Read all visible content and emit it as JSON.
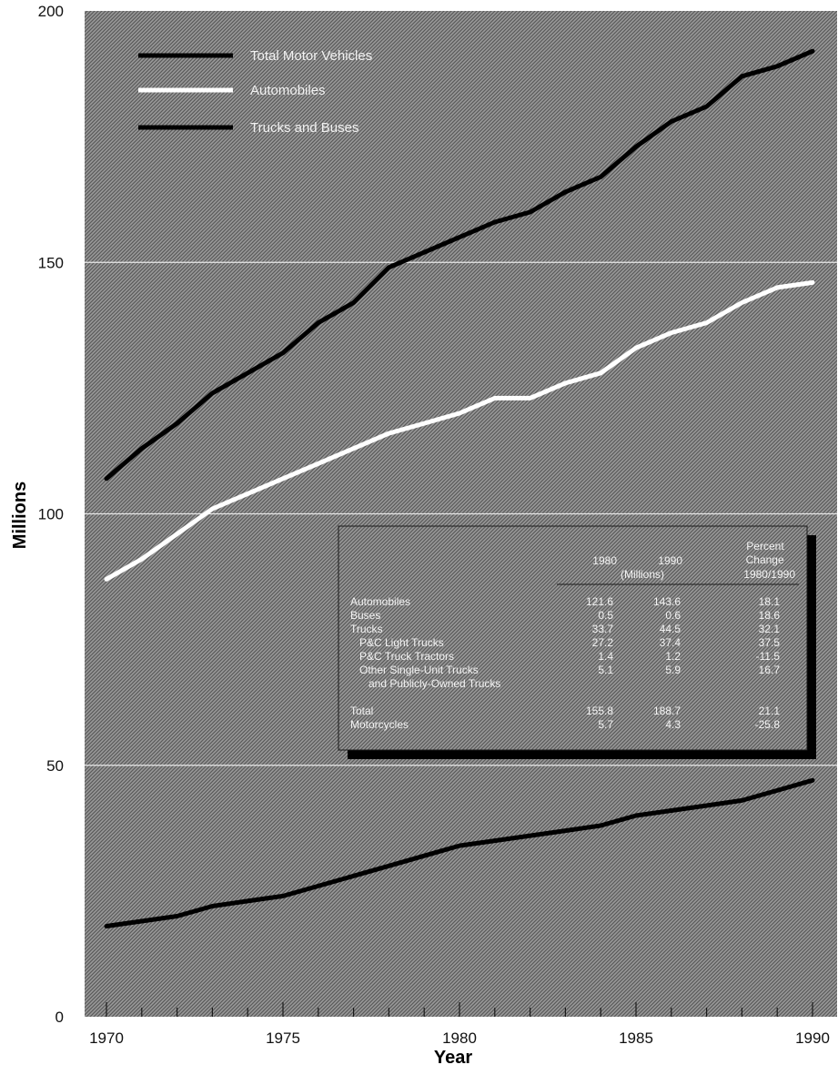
{
  "chart_data": {
    "type": "line",
    "xlabel": "Year",
    "ylabel": "Millions",
    "xlim": [
      1970,
      1990
    ],
    "ylim": [
      0,
      200
    ],
    "x_ticks": [
      1970,
      1975,
      1980,
      1985,
      1990
    ],
    "y_ticks": [
      0,
      50,
      100,
      150,
      200
    ],
    "grid": "horizontal",
    "legend_placement": "top-left",
    "x": [
      1970,
      1971,
      1972,
      1973,
      1974,
      1975,
      1976,
      1977,
      1978,
      1979,
      1980,
      1981,
      1982,
      1983,
      1984,
      1985,
      1986,
      1987,
      1988,
      1989,
      1990
    ],
    "series": [
      {
        "name": "Total Motor Vehicles",
        "color": "#000000",
        "values": [
          107,
          113,
          118,
          124,
          128,
          132,
          138,
          142,
          149,
          152,
          155,
          158,
          160,
          164,
          167,
          173,
          178,
          181,
          187,
          189,
          192
        ]
      },
      {
        "name": "Automobiles",
        "color": "#ffffff",
        "values": [
          87,
          91,
          96,
          101,
          104,
          107,
          110,
          113,
          116,
          118,
          120,
          123,
          123,
          126,
          128,
          133,
          136,
          138,
          142,
          145,
          146
        ]
      },
      {
        "name": "Trucks and Buses",
        "color": "#000000",
        "values": [
          18,
          19,
          20,
          22,
          23,
          24,
          26,
          28,
          30,
          32,
          34,
          35,
          36,
          37,
          38,
          40,
          41,
          42,
          43,
          45,
          47
        ]
      }
    ],
    "inset_table": {
      "col_headers": [
        "1980",
        "1990",
        "Percent Change 1980/1990"
      ],
      "units": "(Millions)",
      "rows": [
        {
          "label": "Automobiles",
          "v1980": "121.6",
          "v1990": "143.6",
          "pct": "18.1"
        },
        {
          "label": "Buses",
          "v1980": "0.5",
          "v1990": "0.6",
          "pct": "18.6"
        },
        {
          "label": "Trucks",
          "v1980": "33.7",
          "v1990": "44.5",
          "pct": "32.1"
        },
        {
          "label": "P&C Light Trucks",
          "v1980": "27.2",
          "v1990": "37.4",
          "pct": "37.5"
        },
        {
          "label": "P&C Truck Tractors",
          "v1980": "1.4",
          "v1990": "1.2",
          "pct": "-11.5"
        },
        {
          "label": "Other Single-Unit Trucks",
          "v1980": "5.1",
          "v1990": "5.9",
          "pct": "16.7"
        },
        {
          "label": "and Publicly-Owned Trucks",
          "v1980": "",
          "v1990": "",
          "pct": ""
        },
        {
          "label": "Total",
          "v1980": "155.8",
          "v1990": "188.7",
          "pct": "21.1"
        },
        {
          "label": "Motorcycles",
          "v1980": "5.7",
          "v1990": "4.3",
          "pct": "-25.8"
        }
      ]
    }
  }
}
